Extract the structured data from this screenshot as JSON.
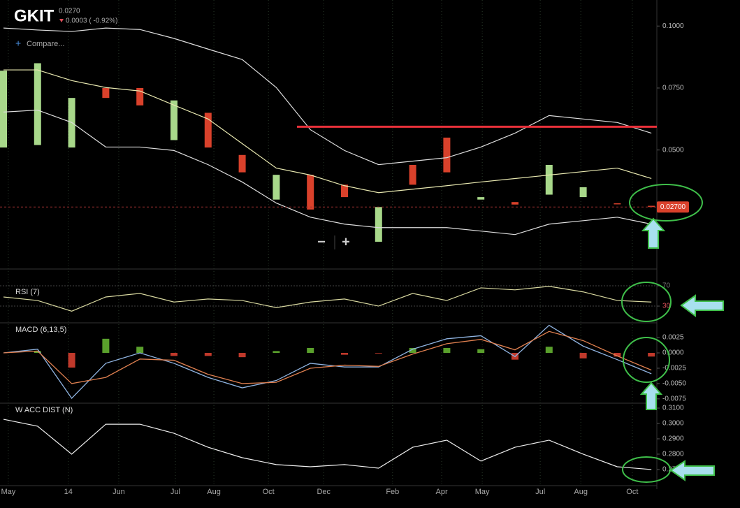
{
  "header": {
    "symbol": "GKIT",
    "price": "0.0270",
    "change": "0.0003 ( -0.92%)",
    "compare": "Compare...",
    "zoom_out": "−",
    "zoom_in": "+"
  },
  "xticks": [
    {
      "value": 0.14,
      "label": "May"
    },
    {
      "value": 1.9,
      "label": "14"
    },
    {
      "value": 3.38,
      "label": "Jun"
    },
    {
      "value": 5.04,
      "label": "Jul"
    },
    {
      "value": 6.17,
      "label": "Aug"
    },
    {
      "value": 7.77,
      "label": "Oct"
    },
    {
      "value": 9.39,
      "label": "Dec"
    },
    {
      "value": 11.41,
      "label": "Feb"
    },
    {
      "value": 12.85,
      "label": "Apr"
    },
    {
      "value": 14.04,
      "label": "May"
    },
    {
      "value": 15.74,
      "label": "Jul"
    },
    {
      "value": 16.93,
      "label": "Aug"
    },
    {
      "value": 18.44,
      "label": "Oct"
    }
  ],
  "chart_data": [
    {
      "type": "candlestick",
      "open": [
        0.051,
        0.052,
        0.051,
        0.075,
        0.075,
        0.054,
        0.065,
        0.048,
        0.03,
        0.04,
        0.036,
        0.013,
        0.044,
        0.055,
        0.03,
        0.029,
        0.032,
        0.031,
        0.0285,
        0.0275
      ],
      "close": [
        0.082,
        0.085,
        0.071,
        0.071,
        0.068,
        0.07,
        0.051,
        0.041,
        0.04,
        0.026,
        0.031,
        0.027,
        0.036,
        0.041,
        0.031,
        0.028,
        0.044,
        0.035,
        0.0282,
        0.027
      ],
      "up_color": "#a8d88a",
      "down_color": "#d9412b",
      "series": [
        {
          "name": "upper",
          "color": "#dddddd",
          "values": [
            0.0992,
            0.0984,
            0.0978,
            0.0992,
            0.0986,
            0.095,
            0.0907,
            0.0865,
            0.0752,
            0.0582,
            0.0498,
            0.0441,
            0.0455,
            0.0469,
            0.0512,
            0.0568,
            0.0639,
            0.0625,
            0.0611,
            0.0568
          ]
        },
        {
          "name": "middle",
          "color": "#e8e8b0",
          "values": [
            0.0823,
            0.0823,
            0.078,
            0.0752,
            0.0738,
            0.0681,
            0.0625,
            0.0526,
            0.0427,
            0.0399,
            0.0356,
            0.0328,
            0.0342,
            0.0356,
            0.0371,
            0.0385,
            0.0399,
            0.0413,
            0.0427,
            0.0385
          ]
        },
        {
          "name": "lower",
          "color": "#dddddd",
          "values": [
            0.0653,
            0.0661,
            0.0611,
            0.0512,
            0.0512,
            0.0498,
            0.0441,
            0.0371,
            0.0286,
            0.0229,
            0.0201,
            0.0187,
            0.0187,
            0.0187,
            0.0173,
            0.0159,
            0.0201,
            0.0215,
            0.0229,
            0.0201
          ]
        }
      ],
      "resistance": {
        "value": 0.0594,
        "color": "#e8303a"
      },
      "last_price": {
        "value": 0.027,
        "label": "0.02700"
      },
      "ylim": [
        0.002,
        0.1105
      ],
      "yticks": [
        {
          "value": 0.05,
          "label": "0.0500"
        },
        {
          "value": 0.075,
          "label": "0.0750"
        },
        {
          "value": 0.1,
          "label": "0.1000"
        }
      ]
    },
    {
      "type": "line",
      "title": "RSI (7)",
      "series": [
        {
          "name": "RSI",
          "color": "#d9d9a0",
          "values": [
            48,
            41,
            20,
            48,
            55,
            38,
            44,
            41,
            27,
            38,
            44,
            30,
            55,
            41,
            66,
            62,
            69,
            58,
            41,
            38
          ]
        }
      ],
      "ylim": [
        -3,
        71.4
      ],
      "yticks": [
        30,
        70
      ],
      "tick_colors": [
        "#e0505a",
        "#777777"
      ]
    },
    {
      "type": "combo",
      "title": "MACD (6,13,5)",
      "series": [
        {
          "name": "histogram",
          "kind": "bar",
          "color": "#5aa02c",
          "neg_color": "#c0392b",
          "values": [
            0,
            0.0003,
            -0.0024,
            0.0023,
            0.001,
            -0.0005,
            -0.0005,
            -0.0007,
            0.0003,
            0.0008,
            -0.0003,
            -0.0001,
            0.0008,
            0.0008,
            0.0006,
            -0.0011,
            0.001,
            -0.0009,
            -0.0006,
            -0.0006
          ]
        },
        {
          "name": "macd",
          "kind": "line",
          "color": "#8fb3e0",
          "values": [
            0,
            0.0006,
            -0.0074,
            -0.0017,
            0,
            -0.0017,
            -0.004,
            -0.0057,
            -0.0045,
            -0.0017,
            -0.0023,
            -0.0023,
            0.0006,
            0.0023,
            0.0028,
            -0.0006,
            0.0045,
            0.0011,
            -0.0011,
            -0.0034
          ]
        },
        {
          "name": "signal",
          "kind": "line",
          "color": "#e08050",
          "values": [
            0,
            0.0003,
            -0.005,
            -0.004,
            -0.001,
            -0.0012,
            -0.0035,
            -0.005,
            -0.0048,
            -0.0025,
            -0.002,
            -0.0022,
            -0.0002,
            0.0015,
            0.0022,
            0.0005,
            0.0035,
            0.002,
            -0.0005,
            -0.0028
          ]
        }
      ],
      "ylim": [
        -0.0082,
        0.0049
      ],
      "yticks": [
        {
          "value": 0.0025,
          "label": "0.0025"
        },
        {
          "value": 0,
          "label": "0.0000"
        },
        {
          "value": -0.0025,
          "label": "-0.0025"
        },
        {
          "value": -0.005,
          "label": "-0.0050"
        },
        {
          "value": -0.0075,
          "label": "-0.0075"
        }
      ]
    },
    {
      "type": "line",
      "title": "W ACC DIST (N)",
      "series": [
        {
          "name": "acc",
          "color": "#eeeeee",
          "values": [
            0.3027,
            0.2982,
            0.28,
            0.2995,
            0.2995,
            0.2936,
            0.2845,
            0.2777,
            0.2732,
            0.2718,
            0.2732,
            0.2709,
            0.2845,
            0.2891,
            0.2755,
            0.2845,
            0.2891,
            0.28,
            0.2718,
            0.27
          ]
        }
      ],
      "ylim": [
        0.2595,
        0.3132
      ],
      "yticks": [
        {
          "value": 0.31,
          "label": "0.3100"
        },
        {
          "value": 0.3,
          "label": "0.3000"
        },
        {
          "value": 0.29,
          "label": "0.2900"
        },
        {
          "value": 0.28,
          "label": "0.2800"
        },
        {
          "value": 0.27,
          "label": "0.2700"
        }
      ]
    }
  ]
}
